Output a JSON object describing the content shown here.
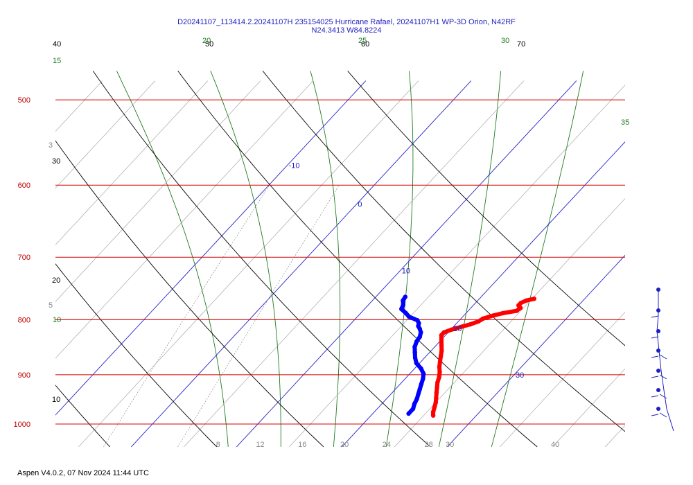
{
  "chart_data": {
    "type": "line",
    "title": "D20241107_113414.2.20241107H 235154025 Hurricane Rafael, 20241107H1 WP-3D Orion, N42RF",
    "subtitle": "N24.3413 W84.8224",
    "pressure_labels": [
      "500",
      "600",
      "700",
      "800",
      "900",
      "1000"
    ],
    "pressure_levels": [
      500,
      600,
      700,
      800,
      900,
      1000
    ],
    "temperature_axis_labels": [
      "8",
      "12",
      "16",
      "20",
      "24",
      "28",
      "30",
      "40"
    ],
    "temperature_axis_values": [
      8,
      12,
      16,
      20,
      24,
      28,
      30,
      40
    ],
    "isotherm_labels": [
      "-10",
      "0",
      "10",
      "20",
      "30"
    ],
    "isotherm_values": [
      -10,
      0,
      10,
      20,
      30
    ],
    "dry_adiabat_labels": [
      "10",
      "20",
      "30",
      "40",
      "50",
      "60",
      "70"
    ],
    "dry_adiabat_values": [
      10,
      20,
      30,
      40,
      50,
      60,
      70
    ],
    "moist_adiabat_labels": [
      "10",
      "15",
      "20",
      "25",
      "30",
      "35"
    ],
    "moist_adiabat_values": [
      10,
      15,
      20,
      25,
      30,
      35
    ],
    "mixing_ratio_labels": [
      "3",
      "5"
    ],
    "mixing_ratio_values": [
      3,
      5
    ],
    "series": [
      {
        "color": "#ff0000",
        "points": [
          [
            765,
            25.2
          ],
          [
            768,
            24.6
          ],
          [
            772,
            24.3
          ],
          [
            776,
            24.3
          ],
          [
            780,
            24.7
          ],
          [
            785,
            24.6
          ],
          [
            789,
            23.5
          ],
          [
            793,
            22.8
          ],
          [
            798,
            22.1
          ],
          [
            803,
            21.9
          ],
          [
            808,
            21.4
          ],
          [
            812,
            20.8
          ],
          [
            817,
            20.1
          ],
          [
            822,
            19.6
          ],
          [
            827,
            19.6
          ],
          [
            835,
            20.0
          ],
          [
            845,
            20.5
          ],
          [
            855,
            21.0
          ],
          [
            865,
            21.4
          ],
          [
            875,
            21.8
          ],
          [
            885,
            22.2
          ],
          [
            895,
            22.7
          ],
          [
            905,
            23.1
          ],
          [
            915,
            23.4
          ],
          [
            925,
            23.8
          ],
          [
            935,
            24.2
          ],
          [
            945,
            24.6
          ],
          [
            955,
            25.0
          ],
          [
            965,
            25.3
          ],
          [
            975,
            25.6
          ],
          [
            982,
            25.9
          ]
        ]
      },
      {
        "color": "#0000ff",
        "points": [
          [
            762,
            12.8
          ],
          [
            768,
            12.9
          ],
          [
            775,
            13.3
          ],
          [
            782,
            13.5
          ],
          [
            789,
            14.3
          ],
          [
            795,
            14.9
          ],
          [
            801,
            16.0
          ],
          [
            806,
            16.4
          ],
          [
            811,
            16.6
          ],
          [
            816,
            17.0
          ],
          [
            822,
            17.4
          ],
          [
            830,
            17.7
          ],
          [
            838,
            17.8
          ],
          [
            848,
            18.1
          ],
          [
            858,
            18.6
          ],
          [
            868,
            19.1
          ],
          [
            878,
            19.7
          ],
          [
            888,
            20.6
          ],
          [
            898,
            21.3
          ],
          [
            908,
            21.7
          ],
          [
            918,
            22.0
          ],
          [
            928,
            22.3
          ],
          [
            938,
            22.6
          ],
          [
            948,
            22.9
          ],
          [
            958,
            23.1
          ],
          [
            968,
            23.4
          ],
          [
            978,
            23.4
          ]
        ]
      }
    ],
    "xlim": [
      0,
      45
    ],
    "ylim": [
      500,
      1000
    ],
    "grid": true
  },
  "footer": "Aspen V4.0.2, 07 Nov 2024  11:44 UTC"
}
